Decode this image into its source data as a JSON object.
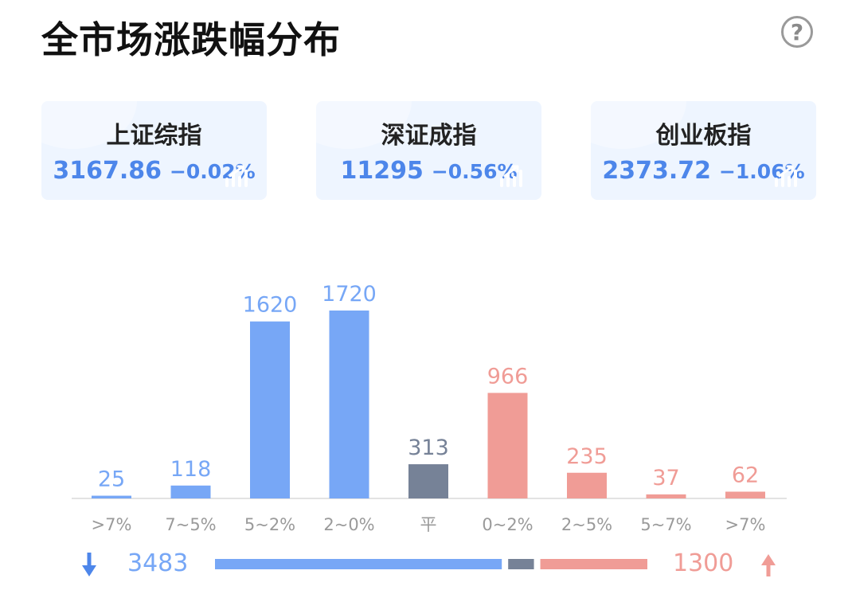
{
  "title": "全市场涨跌幅分布",
  "help_icon": "question-circle-icon",
  "indices": [
    {
      "name": "上证综指",
      "value": "3167.86",
      "change": "−0.02%"
    },
    {
      "name": "深证成指",
      "value": "11295",
      "change": "−0.56%"
    },
    {
      "name": "创业板指",
      "value": "2373.72",
      "change": "−1.06%"
    }
  ],
  "colors": {
    "down": "#77a7f6",
    "flat": "#768297",
    "up": "#f09c96",
    "index_text": "#4d86ea"
  },
  "chart_data": {
    "type": "bar",
    "categories": [
      ">7%",
      "7~5%",
      "5~2%",
      "2~0%",
      "平",
      "0~2%",
      "2~5%",
      "5~7%",
      ">7%"
    ],
    "values": [
      25,
      118,
      1620,
      1720,
      313,
      966,
      235,
      37,
      62
    ],
    "groups": [
      "down",
      "down",
      "down",
      "down",
      "flat",
      "up",
      "up",
      "up",
      "up"
    ],
    "ylim": [
      0,
      1720
    ]
  },
  "summary": {
    "down_icon": "arrow-down-icon",
    "down_total": "3483",
    "up_total": "1300",
    "up_icon": "arrow-up-icon"
  }
}
